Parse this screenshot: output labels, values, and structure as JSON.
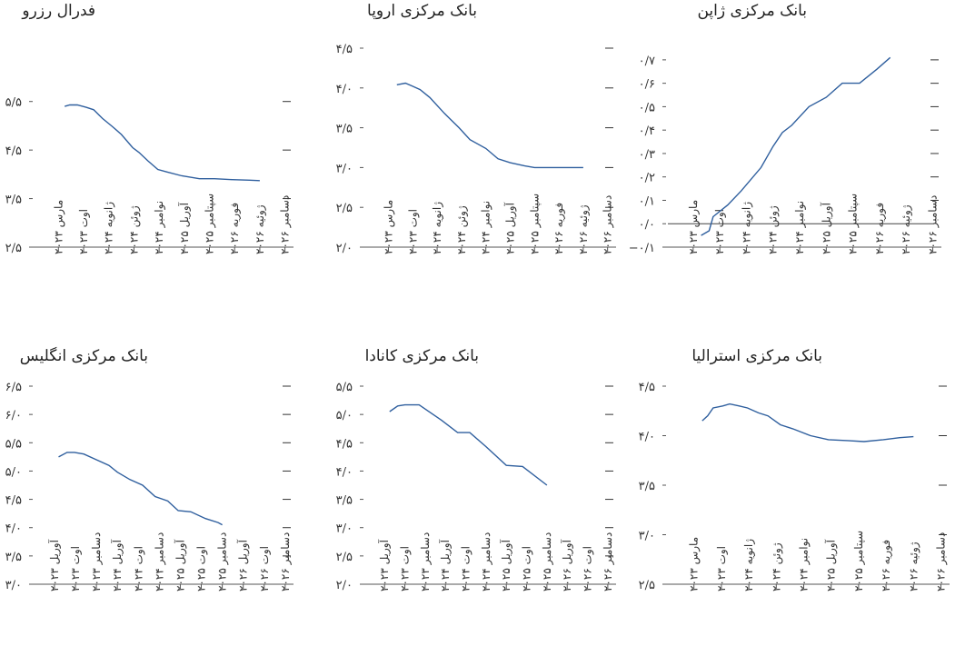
{
  "chart_data": [
    {
      "type": "line",
      "title": "فدرال رزرو",
      "ylim": [
        2.5,
        6.0
      ],
      "yticks": [
        2.5,
        3.5,
        4.5,
        5.5
      ],
      "ytick_labels": [
        "۲/۵",
        "۳/۵",
        "۴/۵",
        "۵/۵"
      ],
      "right_ticks": [
        3.5,
        4.5,
        5.5
      ],
      "categories": [
        "مارس ۲۰۲۳",
        "اوت ۲۰۲۳",
        "ژانویه ۲۰۲۴",
        "ژوئن ۲۰۲۴",
        "نوامبر ۲۰۲۴",
        "آوریل ۲۰۲۵",
        "سپتامبر ۲۰۲۵",
        "فوریه ۲۰۲۶",
        "ژوئیه ۲۰۲۶",
        "دسامبر ۲۰۲۶"
      ],
      "series": [
        {
          "x": [
            1.25,
            1.45,
            1.75,
            2.1,
            2.4,
            2.75,
            3.15,
            3.5,
            3.95,
            4.2,
            4.55,
            4.95,
            5.3,
            5.9,
            6.6,
            7.2,
            7.9,
            8.6,
            9.0
          ],
          "y": [
            5.4,
            5.43,
            5.43,
            5.38,
            5.33,
            5.15,
            4.98,
            4.82,
            4.55,
            4.45,
            4.28,
            4.1,
            4.05,
            3.97,
            3.91,
            3.91,
            3.89,
            3.88,
            3.87
          ]
        }
      ]
    },
    {
      "type": "line",
      "title": "بانک مرکزی اروپا",
      "ylim": [
        2.0,
        4.5
      ],
      "yticks": [
        2.0,
        2.5,
        3.0,
        3.5,
        4.0,
        4.5
      ],
      "ytick_labels": [
        "۲/۰",
        "۲/۵",
        "۳/۰",
        "۳/۵",
        "۴/۰",
        "۴/۵"
      ],
      "right_ticks": [
        2.5,
        3.0,
        3.5,
        4.0,
        4.5
      ],
      "categories": [
        "مارس ۲۰۲۳",
        "اوت ۲۰۲۳",
        "ژانویه ۲۰۲۴",
        "ژوئن ۲۰۲۴",
        "نوامبر ۲۰۲۴",
        "آوریل ۲۰۲۵",
        "سپتامبر ۲۰۲۵",
        "فوریه ۲۰۲۶",
        "ژوئیه ۲۰۲۶",
        "دسامبر ۲۰۲۶"
      ],
      "series": [
        {
          "x": [
            1.35,
            1.7,
            2.0,
            2.3,
            2.7,
            3.3,
            3.9,
            4.35,
            5.0,
            5.5,
            6.0,
            6.6,
            7.0,
            7.6,
            8.3,
            9.0
          ],
          "y": [
            4.04,
            4.06,
            4.02,
            3.98,
            3.88,
            3.68,
            3.5,
            3.35,
            3.24,
            3.11,
            3.06,
            3.02,
            3.0,
            3.0,
            3.0,
            3.0
          ]
        }
      ]
    },
    {
      "type": "line",
      "title": "بانک مرکزی ژاپن",
      "ylim": [
        -0.1,
        0.75
      ],
      "yticks": [
        -0.1,
        0.0,
        0.1,
        0.2,
        0.3,
        0.4,
        0.5,
        0.6,
        0.7
      ],
      "ytick_labels": [
        "−۰/۱",
        "۰/۰",
        "۰/۱",
        "۰/۲",
        "۰/۳",
        "۰/۴",
        "۰/۵",
        "۰/۶",
        "۰/۷"
      ],
      "right_ticks": [
        0.1,
        0.2,
        0.3,
        0.4,
        0.5,
        0.6,
        0.7
      ],
      "zero_line": true,
      "categories": [
        "مارس ۲۰۲۳",
        "اوت ۲۰۲۳",
        "ژانویه ۲۰۲۴",
        "ژوئن ۲۰۲۴",
        "نوامبر ۲۰۲۴",
        "آوریل ۲۰۲۵",
        "سپتامبر ۲۰۲۵",
        "فوریه ۲۰۲۶",
        "ژوئیه ۲۰۲۶",
        "دسامبر ۲۰۲۶"
      ],
      "series": [
        {
          "x": [
            1.3,
            1.6,
            1.75,
            2.3,
            2.8,
            3.55,
            4.0,
            4.35,
            4.7,
            5.35,
            6.0,
            6.6,
            7.25,
            7.9,
            8.4
          ],
          "y": [
            -0.05,
            -0.03,
            0.03,
            0.08,
            0.14,
            0.24,
            0.33,
            0.39,
            0.42,
            0.5,
            0.54,
            0.6,
            0.6,
            0.66,
            0.71
          ]
        }
      ]
    },
    {
      "type": "line",
      "title": "بانک مرکزی انگلیس",
      "ylim": [
        3.0,
        6.5
      ],
      "yticks": [
        3.0,
        3.5,
        4.0,
        4.5,
        5.0,
        5.5,
        6.0,
        6.5
      ],
      "ytick_labels": [
        "۳/۰",
        "۳/۵",
        "۴/۰",
        "۴/۵",
        "۵/۰",
        "۵/۵",
        "۶/۰",
        "۶/۵"
      ],
      "right_ticks": [
        3.5,
        4.0,
        4.5,
        5.0,
        5.5,
        6.0,
        6.5
      ],
      "categories": [
        "آوریل ۲۰۲۳",
        "اوت ۲۰۲۳",
        "دسامبر ۲۰۲۳",
        "آوریل ۲۰۲۴",
        "اوت ۲۰۲۴",
        "دسامبر ۲۰۲۴",
        "آوریل ۲۰۲۵",
        "اوت ۲۰۲۵",
        "دسامبر ۲۰۲۵",
        "آوریل ۲۰۲۶",
        "اوت ۲۰۲۶",
        "دسامبر ۲۰۲۶"
      ],
      "series": [
        {
          "x": [
            1.2,
            1.6,
            1.95,
            2.4,
            3.0,
            3.6,
            4.0,
            4.6,
            5.2,
            5.8,
            6.4,
            6.9,
            7.5,
            8.2,
            8.8,
            9.0
          ],
          "y": [
            5.25,
            5.33,
            5.33,
            5.3,
            5.2,
            5.1,
            4.98,
            4.85,
            4.75,
            4.55,
            4.47,
            4.3,
            4.28,
            4.16,
            4.09,
            4.05
          ]
        }
      ]
    },
    {
      "type": "line",
      "title": "بانک مرکزی کانادا",
      "ylim": [
        2.0,
        5.5
      ],
      "yticks": [
        2.0,
        2.5,
        3.0,
        3.5,
        4.0,
        4.5,
        5.0,
        5.5
      ],
      "ytick_labels": [
        "۲/۰",
        "۲/۵",
        "۳/۰",
        "۳/۵",
        "۴/۰",
        "۴/۵",
        "۵/۰",
        "۵/۵"
      ],
      "right_ticks": [
        2.5,
        3.0,
        3.5,
        4.0,
        4.5,
        5.0,
        5.5
      ],
      "categories": [
        "آوریل ۲۰۲۳",
        "اوت ۲۰۲۳",
        "دسامبر ۲۰۲۳",
        "آوریل ۲۰۲۴",
        "اوت ۲۰۲۴",
        "دسامبر ۲۰۲۴",
        "آوریل ۲۰۲۵",
        "اوت ۲۰۲۵",
        "دسامبر ۲۰۲۵",
        "آوریل ۲۰۲۶",
        "اوت ۲۰۲۶",
        "دسامبر ۲۰۲۶"
      ],
      "series": [
        {
          "x": [
            1.25,
            1.65,
            2.0,
            2.7,
            3.8,
            4.6,
            5.2,
            6.0,
            7.0,
            7.8,
            9.0
          ],
          "y": [
            5.05,
            5.15,
            5.17,
            5.17,
            4.9,
            4.68,
            4.68,
            4.43,
            4.1,
            4.08,
            3.75
          ]
        }
      ]
    },
    {
      "type": "line",
      "title": "بانک مرکزی استرالیا",
      "ylim": [
        2.5,
        4.5
      ],
      "yticks": [
        2.5,
        3.0,
        3.5,
        4.0,
        4.5
      ],
      "ytick_labels": [
        "۲/۵",
        "۳/۰",
        "۳/۵",
        "۴/۰",
        "۴/۵"
      ],
      "right_ticks": [
        3.0,
        3.5,
        4.0,
        4.5
      ],
      "categories": [
        "مارس ۲۰۲۳",
        "اوت ۲۰۲۳",
        "ژانویه ۲۰۲۴",
        "ژوئن ۲۰۲۴",
        "نوامبر ۲۰۲۴",
        "آوریل ۲۰۲۵",
        "سپتامبر ۲۰۲۵",
        "فوریه ۲۰۲۶",
        "ژوئیه ۲۰۲۶",
        "دسامبر ۲۰۲۶"
      ],
      "series": [
        {
          "x": [
            1.3,
            1.5,
            1.7,
            2.05,
            2.3,
            2.65,
            2.95,
            3.35,
            3.7,
            4.15,
            4.6,
            5.25,
            5.9,
            6.6,
            7.2,
            7.9,
            8.5,
            9.0
          ],
          "y": [
            4.15,
            4.2,
            4.28,
            4.3,
            4.32,
            4.3,
            4.28,
            4.23,
            4.2,
            4.11,
            4.07,
            4.0,
            3.96,
            3.95,
            3.94,
            3.96,
            3.98,
            3.99
          ]
        }
      ]
    }
  ]
}
